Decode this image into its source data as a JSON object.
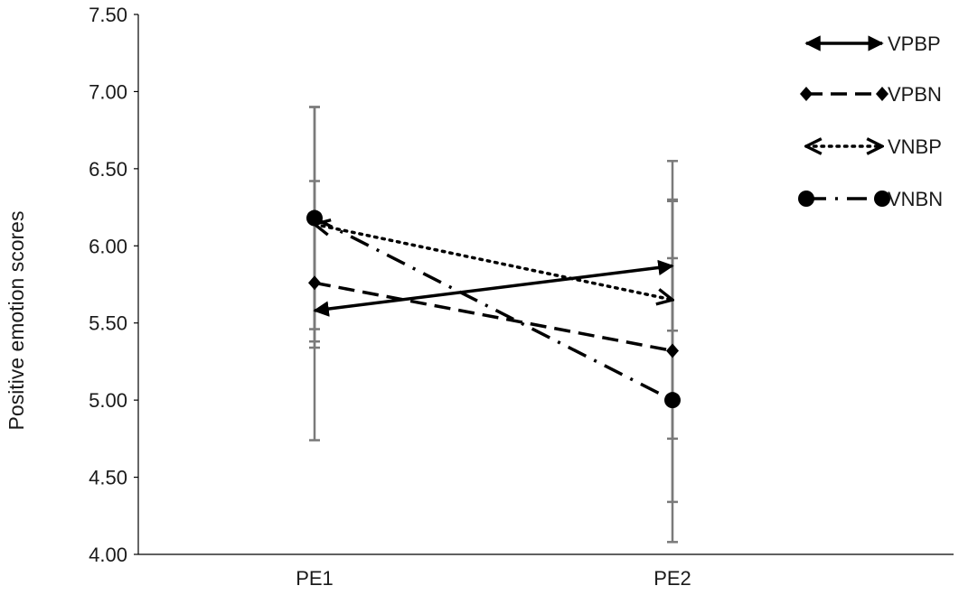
{
  "chart_data": {
    "type": "line",
    "title": "",
    "xlabel": "",
    "ylabel": "Positive emotion scores",
    "categories": [
      "PE1",
      "PE2"
    ],
    "ylim": [
      4.0,
      7.5
    ],
    "yticks": [
      "4.00",
      "4.50",
      "5.00",
      "5.50",
      "6.00",
      "6.50",
      "7.00",
      "7.50"
    ],
    "ytick_values": [
      4.0,
      4.5,
      5.0,
      5.5,
      6.0,
      6.5,
      7.0,
      7.5
    ],
    "grid": false,
    "legend_position": "top-right",
    "series": [
      {
        "name": "VPBP",
        "values": [
          5.58,
          5.87
        ],
        "errors": [
          0.84,
          0.42
        ],
        "style": "solid",
        "marker": "arrow"
      },
      {
        "name": "VPBN",
        "values": [
          5.76,
          5.32
        ],
        "errors": [
          0.42,
          0.98
        ],
        "style": "dash",
        "marker": "diamond"
      },
      {
        "name": "VNBP",
        "values": [
          6.14,
          5.65
        ],
        "errors": [
          0.76,
          0.9
        ],
        "style": "dot",
        "marker": "open-arrow"
      },
      {
        "name": "VNBN",
        "values": [
          6.18,
          5.0
        ],
        "errors": [
          0.72,
          0.92
        ],
        "style": "dashdot",
        "marker": "circle"
      }
    ]
  }
}
